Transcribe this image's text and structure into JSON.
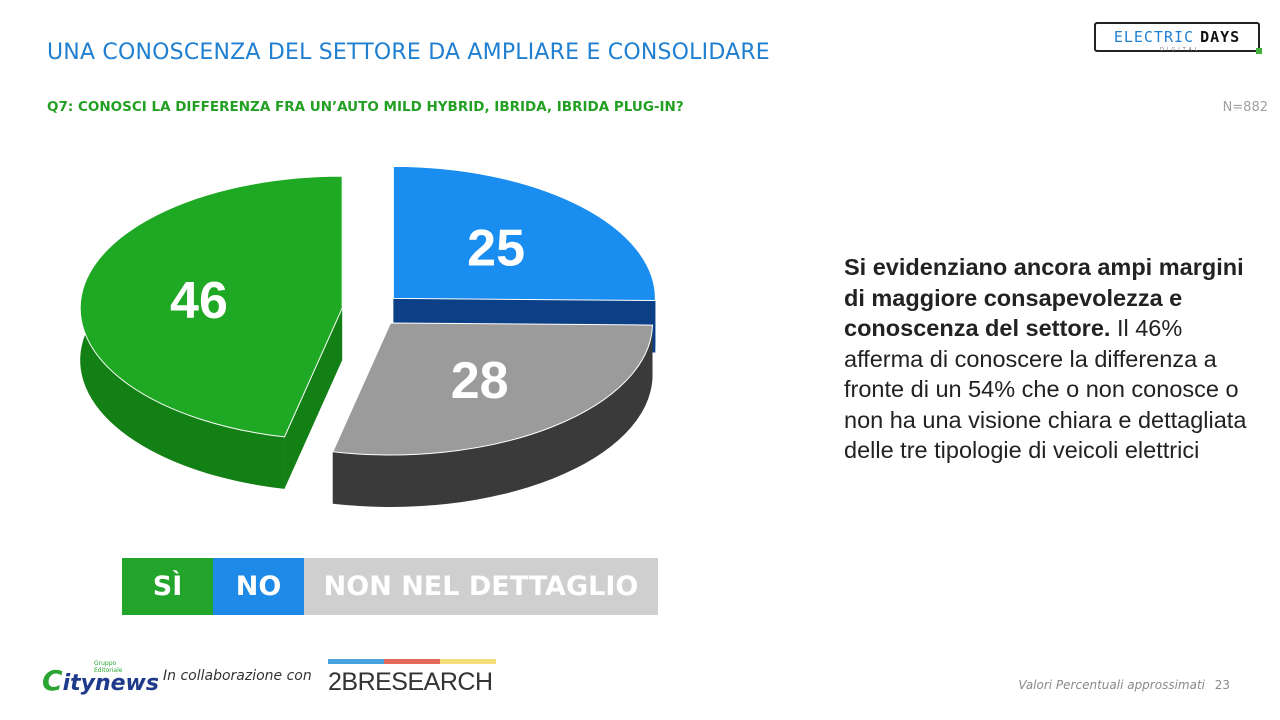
{
  "slide": {
    "title": "UNA CONOSCENZA DEL SETTORE DA AMPLIARE E CONSOLIDARE",
    "question": "Q7: CONOSCI LA DIFFERENZA FRA UN’AUTO MILD HYBRID, IBRIDA, IBRIDA PLUG-IN?",
    "sample": "N=882",
    "page_number": "23",
    "footnote": "Valori Percentuali approssimati"
  },
  "logos": {
    "electric_days_part1": "ELECTRIC",
    "electric_days_part2": "DAYS",
    "electric_days_sub": "DIGITAL",
    "citynews": "itynews",
    "citynews_letter": "C",
    "citynews_small": "Gruppo Editoriale",
    "collab_text": "In collaborazione con",
    "research": "2BRESEARCH",
    "research_bar_colors": [
      "#4aa3df",
      "#e26b5a",
      "#f5de7a"
    ]
  },
  "note": {
    "bold": "Si evidenziano ancora ampi margini di maggiore consapevolezza e conoscenza del settore.",
    "normal": " Il 46% afferma di conoscere la differenza a fronte di un 54% che o non conosce o non ha una visione chiara e dettagliata delle tre tipologie di veicoli elettrici"
  },
  "legend": {
    "si": "SÌ",
    "no": "NO",
    "nd": "NON NEL DETTAGLIO"
  },
  "chart_data": {
    "type": "pie",
    "categories": [
      "SÌ",
      "NO",
      "NON NEL DETTAGLIO"
    ],
    "values": [
      46,
      25,
      28
    ],
    "labels": [
      "46",
      "25",
      "28"
    ],
    "colors": {
      "top": [
        "#1fa823",
        "#1a8ef0",
        "#9b9b9b"
      ],
      "side": [
        "#138016",
        "#0b3f86",
        "#3a3a3a"
      ]
    },
    "style": "3d-exploded"
  }
}
